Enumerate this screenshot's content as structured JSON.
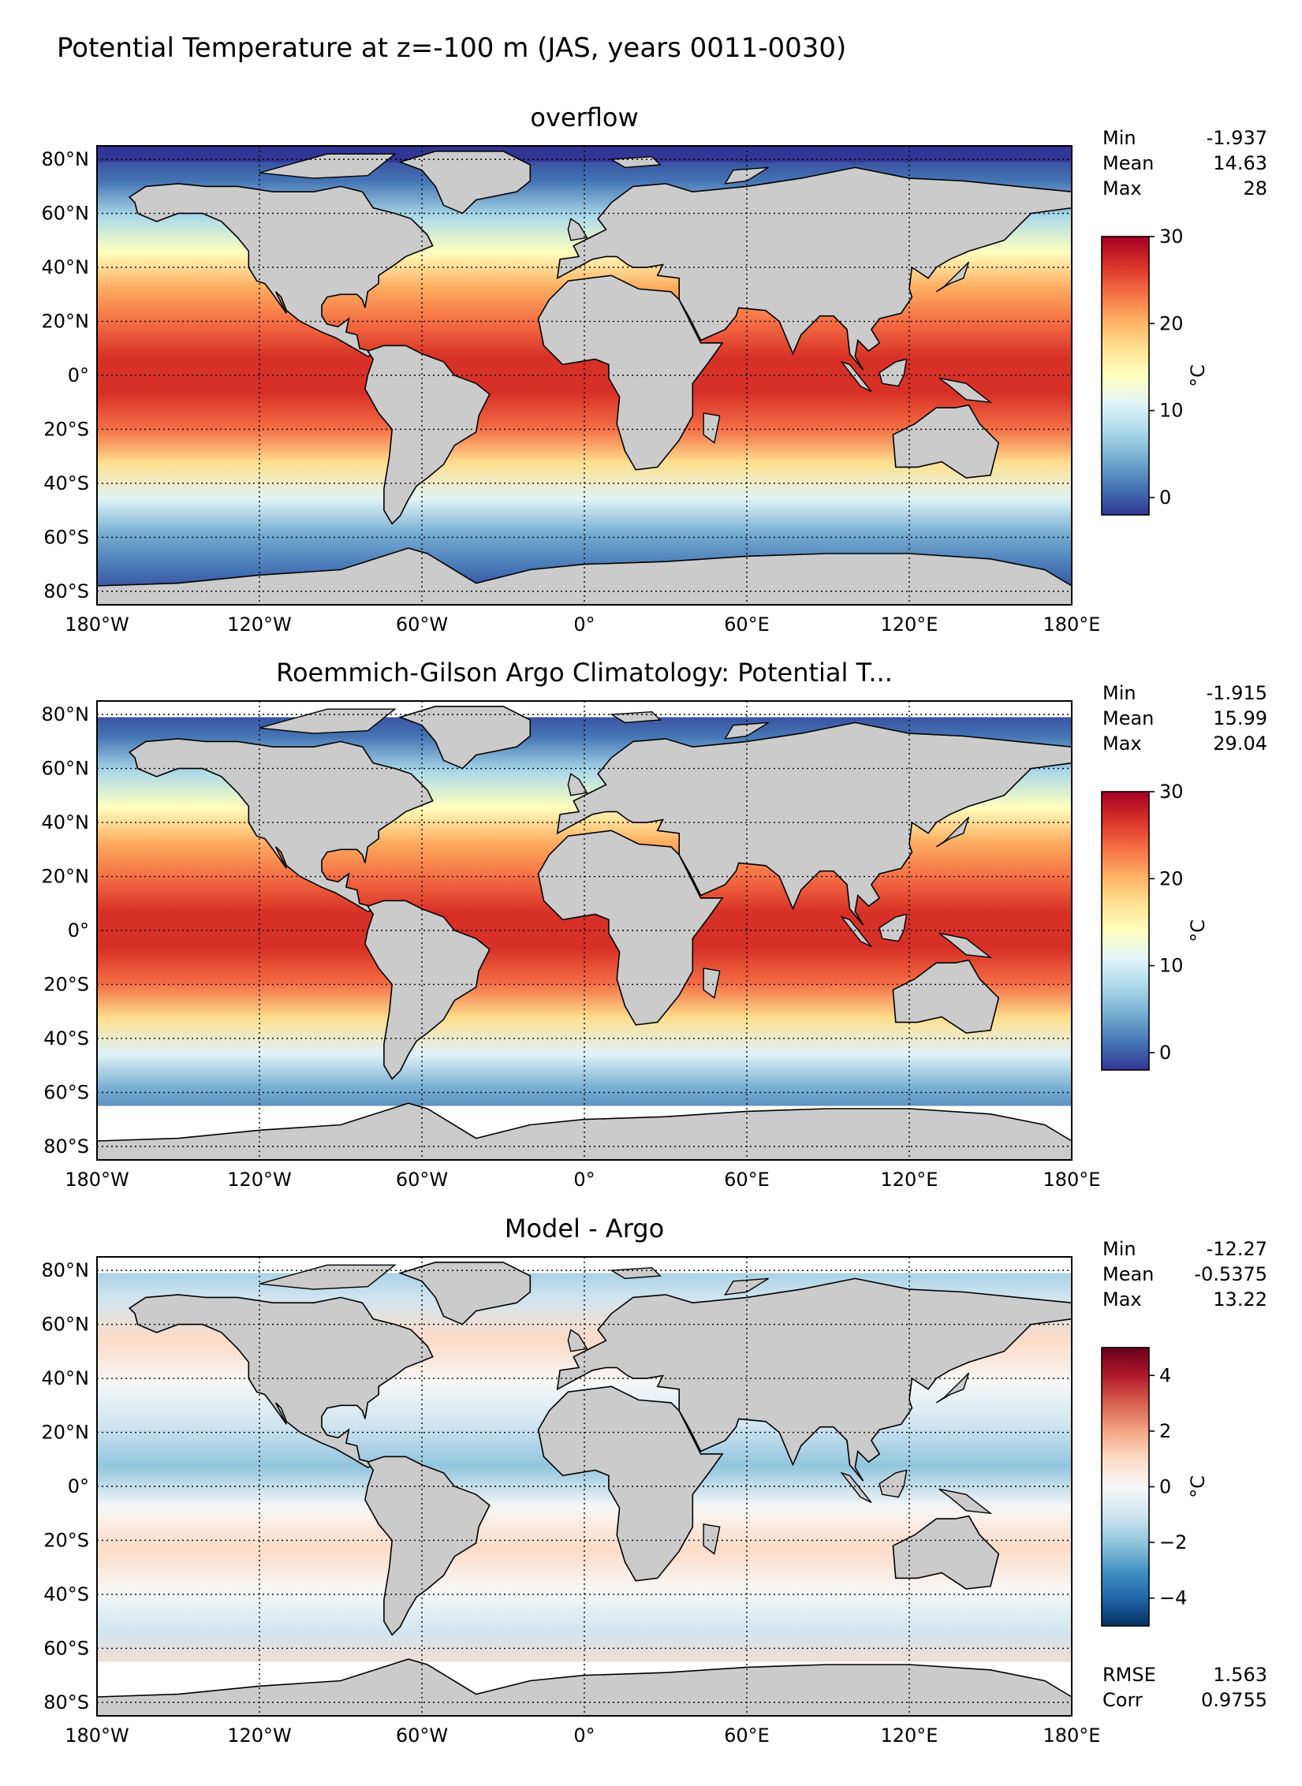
{
  "figure": {
    "title": "Potential Temperature at z=-100 m (JAS, years 0011-0030)"
  },
  "axes": {
    "lon_ticks": [
      "180°W",
      "120°W",
      "60°W",
      "0°",
      "60°E",
      "120°E",
      "180°E"
    ],
    "lat_ticks": [
      "80°N",
      "60°N",
      "40°N",
      "20°N",
      "0°",
      "20°S",
      "40°S",
      "60°S",
      "80°S"
    ]
  },
  "colors": {
    "land": "#cbcbcb",
    "temperature_cmap": [
      "#313695",
      "#4575b4",
      "#74add1",
      "#abd9e9",
      "#e0f3f8",
      "#ffffbf",
      "#fee090",
      "#fdae61",
      "#f46d43",
      "#d73027",
      "#a50026"
    ],
    "bias_cmap": [
      "#053061",
      "#2166ac",
      "#4393c3",
      "#92c5de",
      "#d1e5f0",
      "#f7f7f7",
      "#fddbc7",
      "#f4a582",
      "#d6604d",
      "#b2182b",
      "#67001f"
    ]
  },
  "chart_data": [
    {
      "type": "heatmap",
      "title": "overflow",
      "xlim": [
        -180,
        180
      ],
      "ylim": [
        -85,
        85
      ],
      "grid": true,
      "stats": [
        {
          "label": "Min",
          "value": "-1.937"
        },
        {
          "label": "Mean",
          "value": "14.63"
        },
        {
          "label": "Max",
          "value": "28"
        }
      ],
      "colorbar": {
        "label": "°C",
        "vmin": -2,
        "vmax": 30,
        "ticks": [
          0,
          10,
          20,
          30
        ],
        "tick_labels": [
          "0",
          "10",
          "20",
          "30"
        ],
        "cmap": "temperature"
      }
    },
    {
      "type": "heatmap",
      "title": "Roemmich-Gilson Argo Climatology: Potential T...",
      "xlim": [
        -180,
        180
      ],
      "ylim": [
        -85,
        85
      ],
      "grid": true,
      "stats": [
        {
          "label": "Min",
          "value": "-1.915"
        },
        {
          "label": "Mean",
          "value": "15.99"
        },
        {
          "label": "Max",
          "value": "29.04"
        }
      ],
      "colorbar": {
        "label": "°C",
        "vmin": -2,
        "vmax": 30,
        "ticks": [
          0,
          10,
          20,
          30
        ],
        "tick_labels": [
          "0",
          "10",
          "20",
          "30"
        ],
        "cmap": "temperature"
      }
    },
    {
      "type": "heatmap",
      "title": "Model - Argo",
      "xlim": [
        -180,
        180
      ],
      "ylim": [
        -85,
        85
      ],
      "grid": true,
      "stats": [
        {
          "label": "Min",
          "value": "-12.27"
        },
        {
          "label": "Mean",
          "value": "-0.5375"
        },
        {
          "label": "Max",
          "value": "13.22"
        }
      ],
      "extra_stats": [
        {
          "label": "RMSE",
          "value": "1.563"
        },
        {
          "label": "Corr",
          "value": "0.9755"
        }
      ],
      "colorbar": {
        "label": "°C",
        "vmin": -5,
        "vmax": 5,
        "ticks": [
          4,
          2,
          0,
          -2,
          -4
        ],
        "tick_labels": [
          "4",
          "2",
          "0",
          "−2",
          "−4"
        ],
        "cmap": "bias"
      }
    }
  ]
}
